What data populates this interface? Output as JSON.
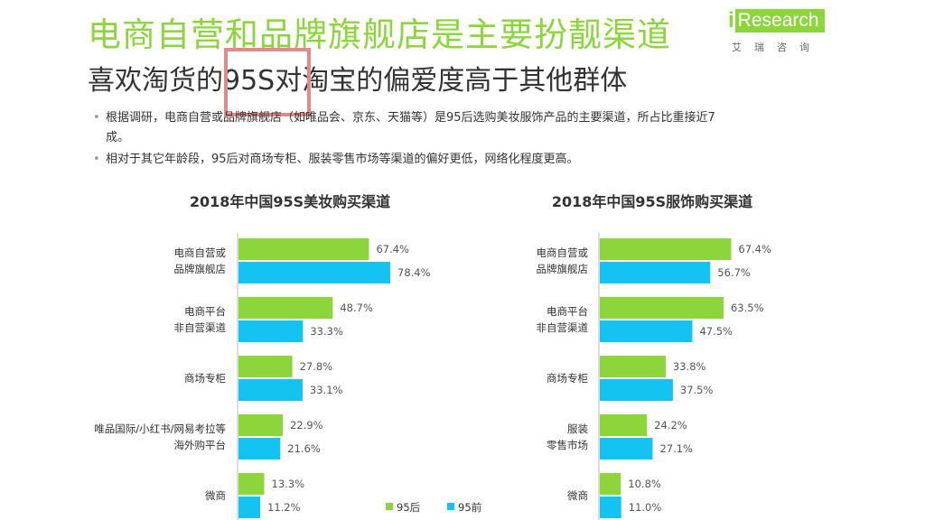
{
  "header": {
    "title": "电商自营和品牌旗舰店是主要扮靓渠道",
    "subtitle": "喜欢淘货的95S对淘宝的偏爱度高于其他群体"
  },
  "logo": {
    "i": "i",
    "word": "Research",
    "sub": "艾瑞咨询"
  },
  "bullets": [
    "根据调研，电商自营或品牌旗舰店（如唯品会、京东、天猫等）是95后选购美妆服饰产品的主要渠道，所占比重接近7成。",
    "相对于其它年龄段，95后对商场专柜、服装零售市场等渠道的偏好更低，网络化程度更高。"
  ],
  "colors": {
    "green": "#8cd53b",
    "blue": "#14c3f2",
    "title_green": "#8cd53b"
  },
  "legend": {
    "series_a": "95后",
    "series_b": "95前"
  },
  "chart_data": [
    {
      "type": "bar",
      "orientation": "horizontal",
      "title": "2018年中国95S美妆购买渠道",
      "categories": [
        [
          "电商自营或",
          "品牌旗舰店"
        ],
        [
          "电商平台",
          "非自营渠道"
        ],
        [
          "商场专柜"
        ],
        [
          "唯品国际/小红书/网易考拉等",
          "海外购平台"
        ],
        [
          "微商"
        ]
      ],
      "series": [
        {
          "name": "95后",
          "values": [
            67.4,
            48.7,
            27.8,
            22.9,
            13.3
          ],
          "labels": [
            "67.4%",
            "48.7%",
            "27.8%",
            "22.9%",
            "13.3%"
          ]
        },
        {
          "name": "95前",
          "values": [
            78.4,
            33.3,
            33.1,
            21.6,
            11.2
          ],
          "labels": [
            "78.4%",
            "33.3%",
            "33.1%",
            "21.6%",
            "11.2%"
          ]
        }
      ],
      "xlim": [
        0,
        100
      ],
      "legend": "bottom-right"
    },
    {
      "type": "bar",
      "orientation": "horizontal",
      "title": "2018年中国95S服饰购买渠道",
      "categories": [
        [
          "电商自营或",
          "品牌旗舰店"
        ],
        [
          "电商平台",
          "非自营渠道"
        ],
        [
          "商场专柜"
        ],
        [
          "服装",
          "零售市场"
        ],
        [
          "微商"
        ]
      ],
      "series": [
        {
          "name": "95后",
          "values": [
            67.4,
            63.5,
            33.8,
            24.2,
            10.8
          ],
          "labels": [
            "67.4%",
            "63.5%",
            "33.8%",
            "24.2%",
            "10.8%"
          ]
        },
        {
          "name": "95前",
          "values": [
            56.7,
            47.5,
            37.5,
            27.1,
            11.0
          ],
          "labels": [
            "56.7%",
            "47.5%",
            "37.5%",
            "27.1%",
            "11.0%"
          ]
        }
      ],
      "xlim": [
        0,
        100
      ]
    }
  ]
}
